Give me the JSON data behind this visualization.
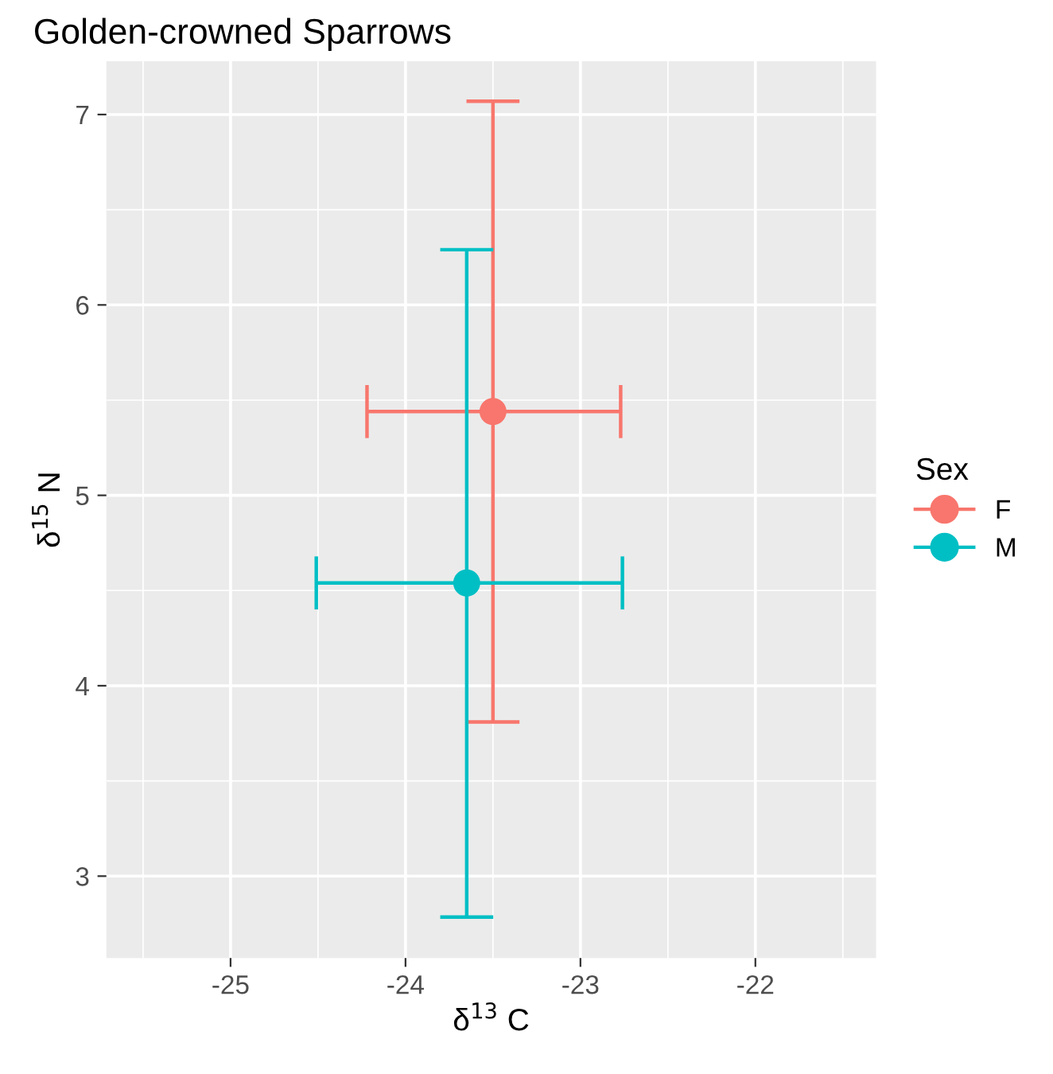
{
  "chart_data": {
    "type": "scatter",
    "title": "Golden-crowned Sparrows",
    "xlabel": "δ$^{13}$ C",
    "ylabel": "δ$^{15}$ N",
    "legend_title": "Sex",
    "series": [
      {
        "name": "F",
        "color": "#f8766d",
        "x": [
          -23.5
        ],
        "values": [
          5.44
        ],
        "errors": [
          [
            3.81,
            7.07
          ]
        ],
        "xerrors": [
          [
            -24.22,
            -22.77
          ]
        ]
      },
      {
        "name": "M",
        "color": "#00bfc4",
        "x": [
          -23.65
        ],
        "values": [
          4.54
        ],
        "errors": [
          [
            2.785,
            6.29
          ]
        ],
        "xerrors": [
          [
            -24.51,
            -22.76
          ]
        ]
      }
    ],
    "xlim": [
      -25.71,
      -21.31
    ],
    "ylim": [
      2.57,
      7.28
    ],
    "xticks": [
      -25,
      -24,
      -23,
      -22
    ],
    "yticks": [
      3,
      4,
      5,
      6,
      7
    ],
    "grid": true,
    "legend": "right",
    "marker": "circle"
  }
}
